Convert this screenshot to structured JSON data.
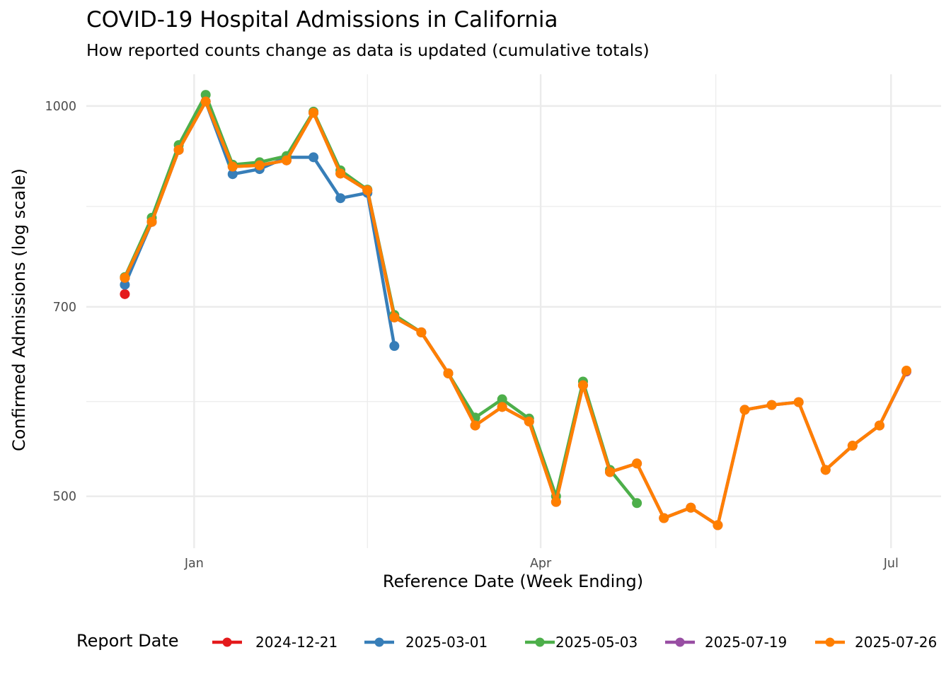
{
  "chart_data": {
    "type": "line",
    "title": "COVID-19 Hospital Admissions in California",
    "subtitle": "How reported counts change as data is updated (cumulative totals)",
    "xlabel": "Reference Date (Week Ending)",
    "ylabel": "Confirmed Admissions (log scale)",
    "yscale": "log10",
    "ylim": [
      456,
      1058
    ],
    "xlim": [
      "2024-12-04",
      "2025-07-14"
    ],
    "yticks": [
      500,
      700,
      1000
    ],
    "ytick_labels": [
      "500",
      "700",
      "1000"
    ],
    "xticks": [
      "2025-01-01",
      "2025-04-01",
      "2025-07-01"
    ],
    "xtick_labels": [
      "Jan",
      "Apr",
      "Jul"
    ],
    "grid": true,
    "legend": {
      "title": "Report Date",
      "position": "bottom"
    },
    "x": [
      "2024-12-14",
      "2024-12-21",
      "2024-12-28",
      "2025-01-04",
      "2025-01-11",
      "2025-01-18",
      "2025-01-25",
      "2025-02-01",
      "2025-02-08",
      "2025-02-15",
      "2025-02-22",
      "2025-03-01",
      "2025-03-08",
      "2025-03-15",
      "2025-03-22",
      "2025-03-29",
      "2025-04-05",
      "2025-04-12",
      "2025-04-19",
      "2025-04-26",
      "2025-05-03",
      "2025-05-10",
      "2025-05-17",
      "2025-05-24",
      "2025-05-31",
      "2025-06-07",
      "2025-06-14",
      "2025-06-21",
      "2025-06-28",
      "2025-07-05"
    ],
    "series": [
      {
        "name": "2024-12-21",
        "color": "#E41A1C",
        "values": [
          716,
          null,
          null,
          null,
          null,
          null,
          null,
          null,
          null,
          null,
          null,
          null,
          null,
          null,
          null,
          null,
          null,
          null,
          null,
          null,
          null,
          null,
          null,
          null,
          null,
          null,
          null,
          null,
          null,
          null
        ]
      },
      {
        "name": "2025-03-01",
        "color": "#377EB8",
        "values": [
          728,
          814,
          925,
          1008,
          886,
          894,
          913,
          913,
          849,
          857,
          653,
          null,
          null,
          null,
          null,
          null,
          null,
          null,
          null,
          null,
          null,
          null,
          null,
          null,
          null,
          null,
          null,
          null,
          null,
          null
        ]
      },
      {
        "name": "2025-05-03",
        "color": "#4DAF4A",
        "values": [
          738,
          820,
          933,
          1020,
          901,
          905,
          915,
          990,
          892,
          862,
          690,
          669,
          622,
          575,
          594,
          574,
          500,
          613,
          524,
          494,
          null,
          null,
          null,
          null,
          null,
          null,
          null,
          null,
          null,
          null
        ]
      },
      {
        "name": "2025-07-19",
        "color": "#984EA3",
        "values": [
          737,
          814,
          925,
          1008,
          898,
          900,
          908,
          988,
          887,
          861,
          687,
          669,
          622,
          567,
          586,
          571,
          495,
          609,
          522,
          530,
          481,
          490,
          475,
          583,
          588,
          591,
          524,
          547,
          567,
          624
        ]
      },
      {
        "name": "2025-07-26",
        "color": "#FF7F00",
        "values": [
          737,
          814,
          925,
          1008,
          898,
          900,
          908,
          988,
          887,
          861,
          687,
          669,
          622,
          567,
          586,
          571,
          495,
          609,
          522,
          530,
          481,
          490,
          475,
          583,
          588,
          591,
          524,
          547,
          567,
          625
        ]
      }
    ]
  }
}
